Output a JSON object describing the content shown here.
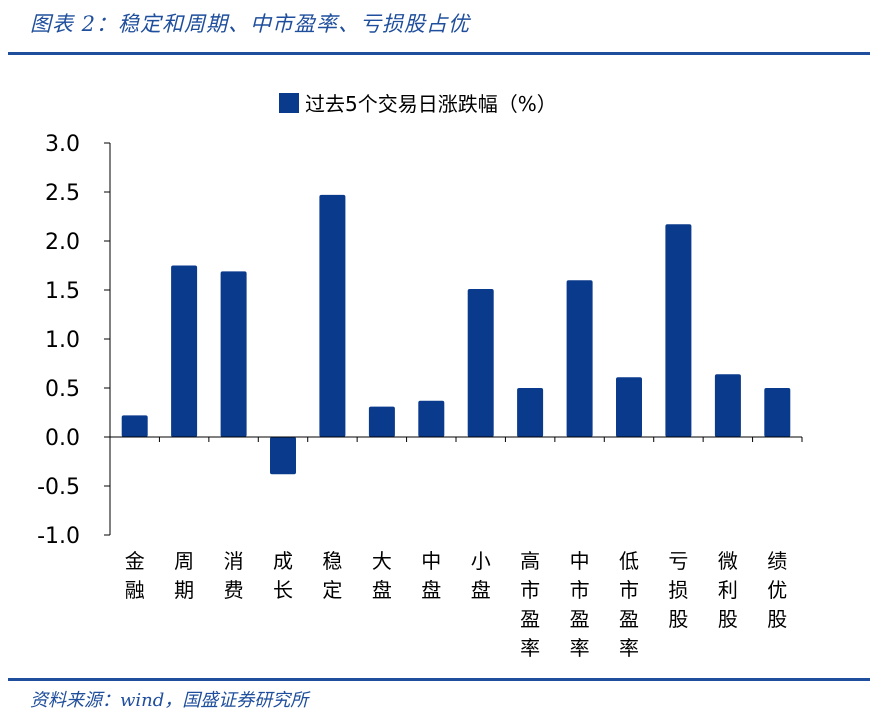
{
  "figure": {
    "title": "图表 2：稳定和周期、中市盈率、亏损股占优",
    "source": "资料来源：wind，国盛证券研究所"
  },
  "colors": {
    "bar": "#0a3a8c",
    "accent": "#1f4e9c",
    "axis": "#000000"
  },
  "chart_data": {
    "type": "bar",
    "title": "",
    "xlabel": "",
    "ylabel": "",
    "legend": {
      "label": "过去5个交易日涨跌幅（%）",
      "position": "top-center"
    },
    "grid": false,
    "ylim": [
      -1.0,
      3.0
    ],
    "yticks": [
      "3.0",
      "2.5",
      "2.0",
      "1.5",
      "1.0",
      "0.5",
      "0.0",
      "-0.5",
      "-1.0"
    ],
    "categories": [
      "金融",
      "周期",
      "消费",
      "成长",
      "稳定",
      "大盘",
      "中盘",
      "小盘",
      "高市盈率",
      "中市盈率",
      "低市盈率",
      "亏损股",
      "微利股",
      "绩优股"
    ],
    "series": [
      {
        "name": "过去5个交易日涨跌幅（%）",
        "values": [
          0.22,
          1.75,
          1.69,
          -0.38,
          2.47,
          0.31,
          0.37,
          1.51,
          0.5,
          1.6,
          0.61,
          2.17,
          0.64,
          0.5
        ]
      }
    ]
  }
}
